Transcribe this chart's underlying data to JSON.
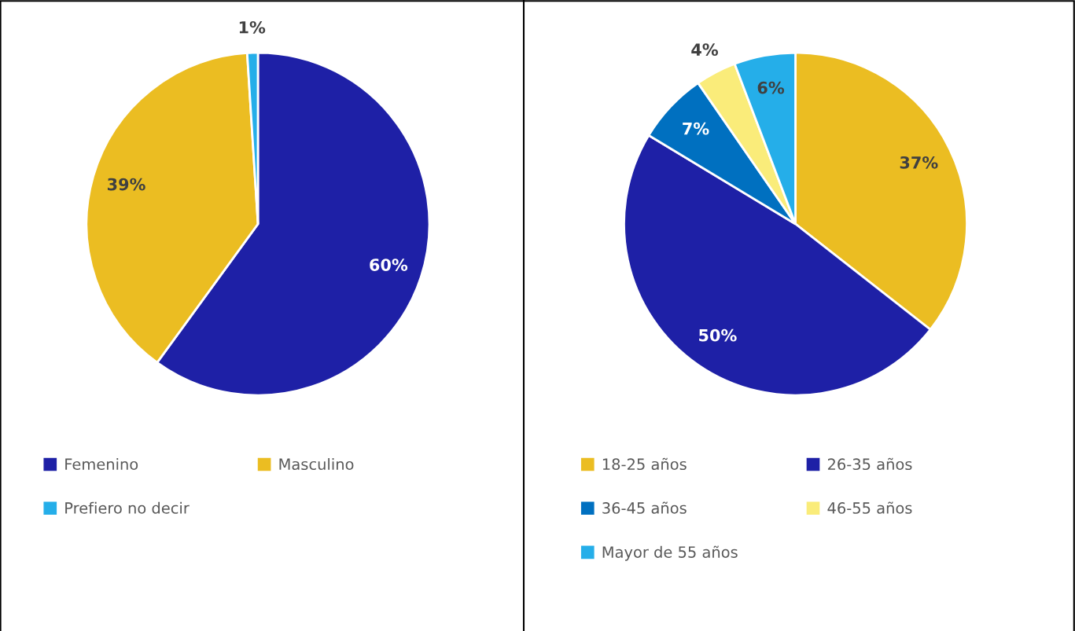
{
  "chart_data": [
    {
      "type": "pie",
      "categories": [
        "Femenino",
        "Masculino",
        "Prefiero no decir"
      ],
      "values": [
        60,
        39,
        1
      ],
      "colors": [
        "#1e20a6",
        "#ebbd22",
        "#25aee9"
      ],
      "value_labels": [
        "60%",
        "39%",
        "1%"
      ],
      "legend": "bottom"
    },
    {
      "type": "pie",
      "categories": [
        "18-25 años",
        "26-35 años",
        "36-45 años",
        "46-55 años",
        "Mayor de 55 años"
      ],
      "values": [
        37,
        50,
        7,
        4,
        6
      ],
      "colors": [
        "#ebbd22",
        "#1e20a6",
        "#0070c0",
        "#faec7a",
        "#25aee9"
      ],
      "value_labels": [
        "37%",
        "50%",
        "7%",
        "4%",
        "6%"
      ],
      "legend": "bottom"
    }
  ]
}
